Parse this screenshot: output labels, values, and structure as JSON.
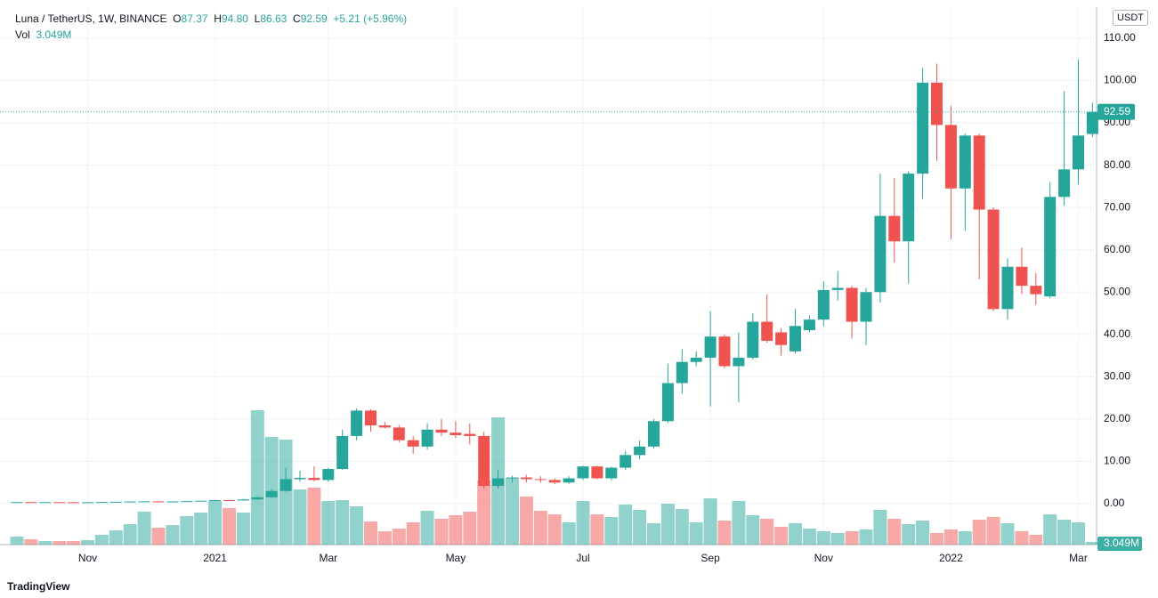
{
  "header": {
    "symbol": "Luna / TetherUS, 1W, BINANCE",
    "o_label": "O",
    "open": "87.37",
    "h_label": "H",
    "high": "94.80",
    "l_label": "L",
    "low": "86.63",
    "c_label": "C",
    "close": "92.59",
    "change": "+5.21 (+5.96%)",
    "vol_label": "Vol",
    "vol_value": "3.049M"
  },
  "currency": "USDT",
  "brand": "TradingView",
  "chart_data": {
    "type": "candlestick",
    "up_color": "#26a69a",
    "down_color": "#ef5350",
    "grid": true,
    "categories": [
      null,
      null,
      null,
      null,
      null,
      "Nov",
      null,
      null,
      null,
      null,
      null,
      null,
      null,
      null,
      "2021",
      null,
      null,
      null,
      null,
      null,
      null,
      null,
      "Mar",
      null,
      null,
      null,
      null,
      null,
      null,
      null,
      null,
      "May",
      null,
      null,
      null,
      null,
      null,
      null,
      null,
      null,
      "Jul",
      null,
      null,
      null,
      null,
      null,
      null,
      null,
      null,
      "Sep",
      null,
      null,
      null,
      null,
      null,
      null,
      null,
      "Nov",
      null,
      null,
      null,
      null,
      null,
      null,
      null,
      null,
      "2022",
      null,
      null,
      null,
      null,
      null,
      null,
      null,
      null,
      "Mar",
      null
    ],
    "open": [
      0.35,
      0.38,
      0.36,
      0.37,
      0.34,
      0.33,
      0.35,
      0.4,
      0.45,
      0.5,
      0.55,
      0.48,
      0.53,
      0.6,
      0.7,
      0.85,
      0.75,
      1.0,
      1.5,
      3.0,
      5.8,
      6.1,
      5.6,
      8.2,
      16.0,
      22.0,
      18.5,
      18.0,
      15.0,
      13.5,
      17.5,
      16.8,
      16.5,
      16.0,
      4.2,
      6.0,
      6.2,
      5.8,
      5.6,
      5.0,
      6.0,
      8.8,
      6.0,
      8.5,
      11.5,
      13.5,
      19.5,
      28.5,
      33.5,
      34.5,
      39.5,
      32.5,
      34.5,
      43.0,
      40.5,
      36.0,
      41.0,
      43.5,
      50.5,
      51.0,
      43.0,
      50.0,
      68.0,
      62.0,
      78.0,
      99.5,
      89.5,
      74.5,
      87.0,
      69.5,
      46.0,
      56.0,
      51.5,
      49.0,
      72.5,
      79.0,
      87.37
    ],
    "high": [
      0.4,
      0.4,
      0.4,
      0.4,
      0.37,
      0.38,
      0.42,
      0.48,
      0.55,
      0.6,
      0.58,
      0.56,
      0.62,
      0.72,
      0.95,
      0.9,
      1.1,
      1.8,
      3.5,
      8.5,
      7.8,
      8.8,
      8.5,
      17.5,
      22.5,
      22.3,
      19.3,
      18.6,
      16.0,
      19.0,
      20.0,
      19.5,
      19.0,
      17.0,
      8.0,
      6.6,
      6.8,
      6.5,
      6.0,
      6.5,
      9.0,
      9.0,
      8.8,
      12.5,
      15.0,
      20.0,
      33.0,
      36.5,
      36.0,
      45.5,
      40.0,
      40.5,
      45.0,
      49.5,
      41.5,
      46.0,
      44.5,
      52.5,
      55.0,
      51.5,
      51.0,
      78.0,
      77.0,
      78.5,
      103.0,
      104.0,
      94.0,
      87.5,
      87.5,
      70.0,
      58.0,
      60.5,
      54.5,
      76.0,
      97.5,
      105.0,
      94.8
    ],
    "low": [
      0.3,
      0.33,
      0.33,
      0.32,
      0.3,
      0.3,
      0.33,
      0.38,
      0.42,
      0.45,
      0.45,
      0.46,
      0.5,
      0.56,
      0.65,
      0.68,
      0.7,
      0.9,
      1.4,
      2.8,
      5.2,
      5.3,
      5.2,
      8.0,
      15.0,
      17.0,
      17.8,
      14.5,
      11.8,
      12.8,
      16.0,
      15.5,
      14.0,
      3.5,
      3.6,
      5.0,
      5.0,
      5.0,
      4.6,
      4.7,
      5.6,
      5.8,
      5.5,
      8.0,
      10.5,
      13.0,
      19.0,
      26.0,
      32.5,
      23.0,
      32.0,
      24.0,
      34.0,
      38.0,
      35.0,
      35.5,
      40.5,
      42.0,
      48.0,
      39.0,
      37.5,
      47.5,
      57.0,
      52.0,
      72.0,
      81.0,
      62.5,
      64.5,
      53.0,
      45.5,
      43.5,
      49.5,
      47.0,
      48.5,
      70.5,
      75.5,
      86.63
    ],
    "close": [
      0.38,
      0.36,
      0.37,
      0.34,
      0.33,
      0.35,
      0.4,
      0.45,
      0.5,
      0.55,
      0.48,
      0.53,
      0.6,
      0.7,
      0.85,
      0.75,
      1.0,
      1.5,
      3.0,
      5.8,
      6.1,
      5.6,
      8.2,
      16.0,
      22.0,
      18.5,
      18.0,
      15.0,
      13.5,
      17.5,
      16.8,
      16.2,
      16.0,
      4.2,
      6.0,
      6.2,
      5.8,
      5.6,
      5.0,
      6.0,
      8.8,
      6.0,
      8.5,
      11.5,
      13.5,
      19.5,
      28.5,
      33.5,
      34.5,
      39.5,
      32.5,
      34.5,
      43.0,
      38.5,
      37.5,
      42.0,
      43.5,
      50.5,
      51.0,
      43.0,
      50.0,
      68.0,
      62.0,
      78.0,
      99.5,
      89.5,
      74.5,
      87.0,
      69.5,
      46.0,
      56.0,
      51.5,
      49.5,
      72.5,
      79.0,
      87.0,
      92.59
    ],
    "volume": [
      9,
      6,
      4,
      4,
      4,
      5,
      11,
      16,
      23,
      37,
      19,
      22,
      32,
      36,
      49,
      41,
      36,
      151,
      121,
      118,
      62,
      64,
      49,
      50,
      43,
      26,
      15,
      18,
      25,
      38,
      29,
      33,
      37,
      72,
      143,
      75,
      54,
      38,
      34,
      25,
      49,
      34,
      31,
      45,
      39,
      24,
      46,
      40,
      25,
      52,
      27,
      49,
      33,
      29,
      20,
      24,
      18,
      15,
      13,
      15,
      17,
      39,
      29,
      23,
      27,
      13,
      17,
      15,
      28,
      31,
      24,
      15,
      11,
      34,
      28,
      25,
      3.049
    ],
    "ylim": [
      -9.67,
      117.35
    ],
    "yticks": [
      {
        "value": 110,
        "label": "110.00"
      },
      {
        "value": 100,
        "label": "100.00"
      },
      {
        "value": 90,
        "label": "90.00"
      },
      {
        "value": 80,
        "label": "80.00"
      },
      {
        "value": 70,
        "label": "70.00"
      },
      {
        "value": 60,
        "label": "60.00"
      },
      {
        "value": 50,
        "label": "50.00"
      },
      {
        "value": 40,
        "label": "40.00"
      },
      {
        "value": 30,
        "label": "30.00"
      },
      {
        "value": 20,
        "label": "20.00"
      },
      {
        "value": 10,
        "label": "10.00"
      },
      {
        "value": 0,
        "label": "0.00"
      }
    ]
  }
}
